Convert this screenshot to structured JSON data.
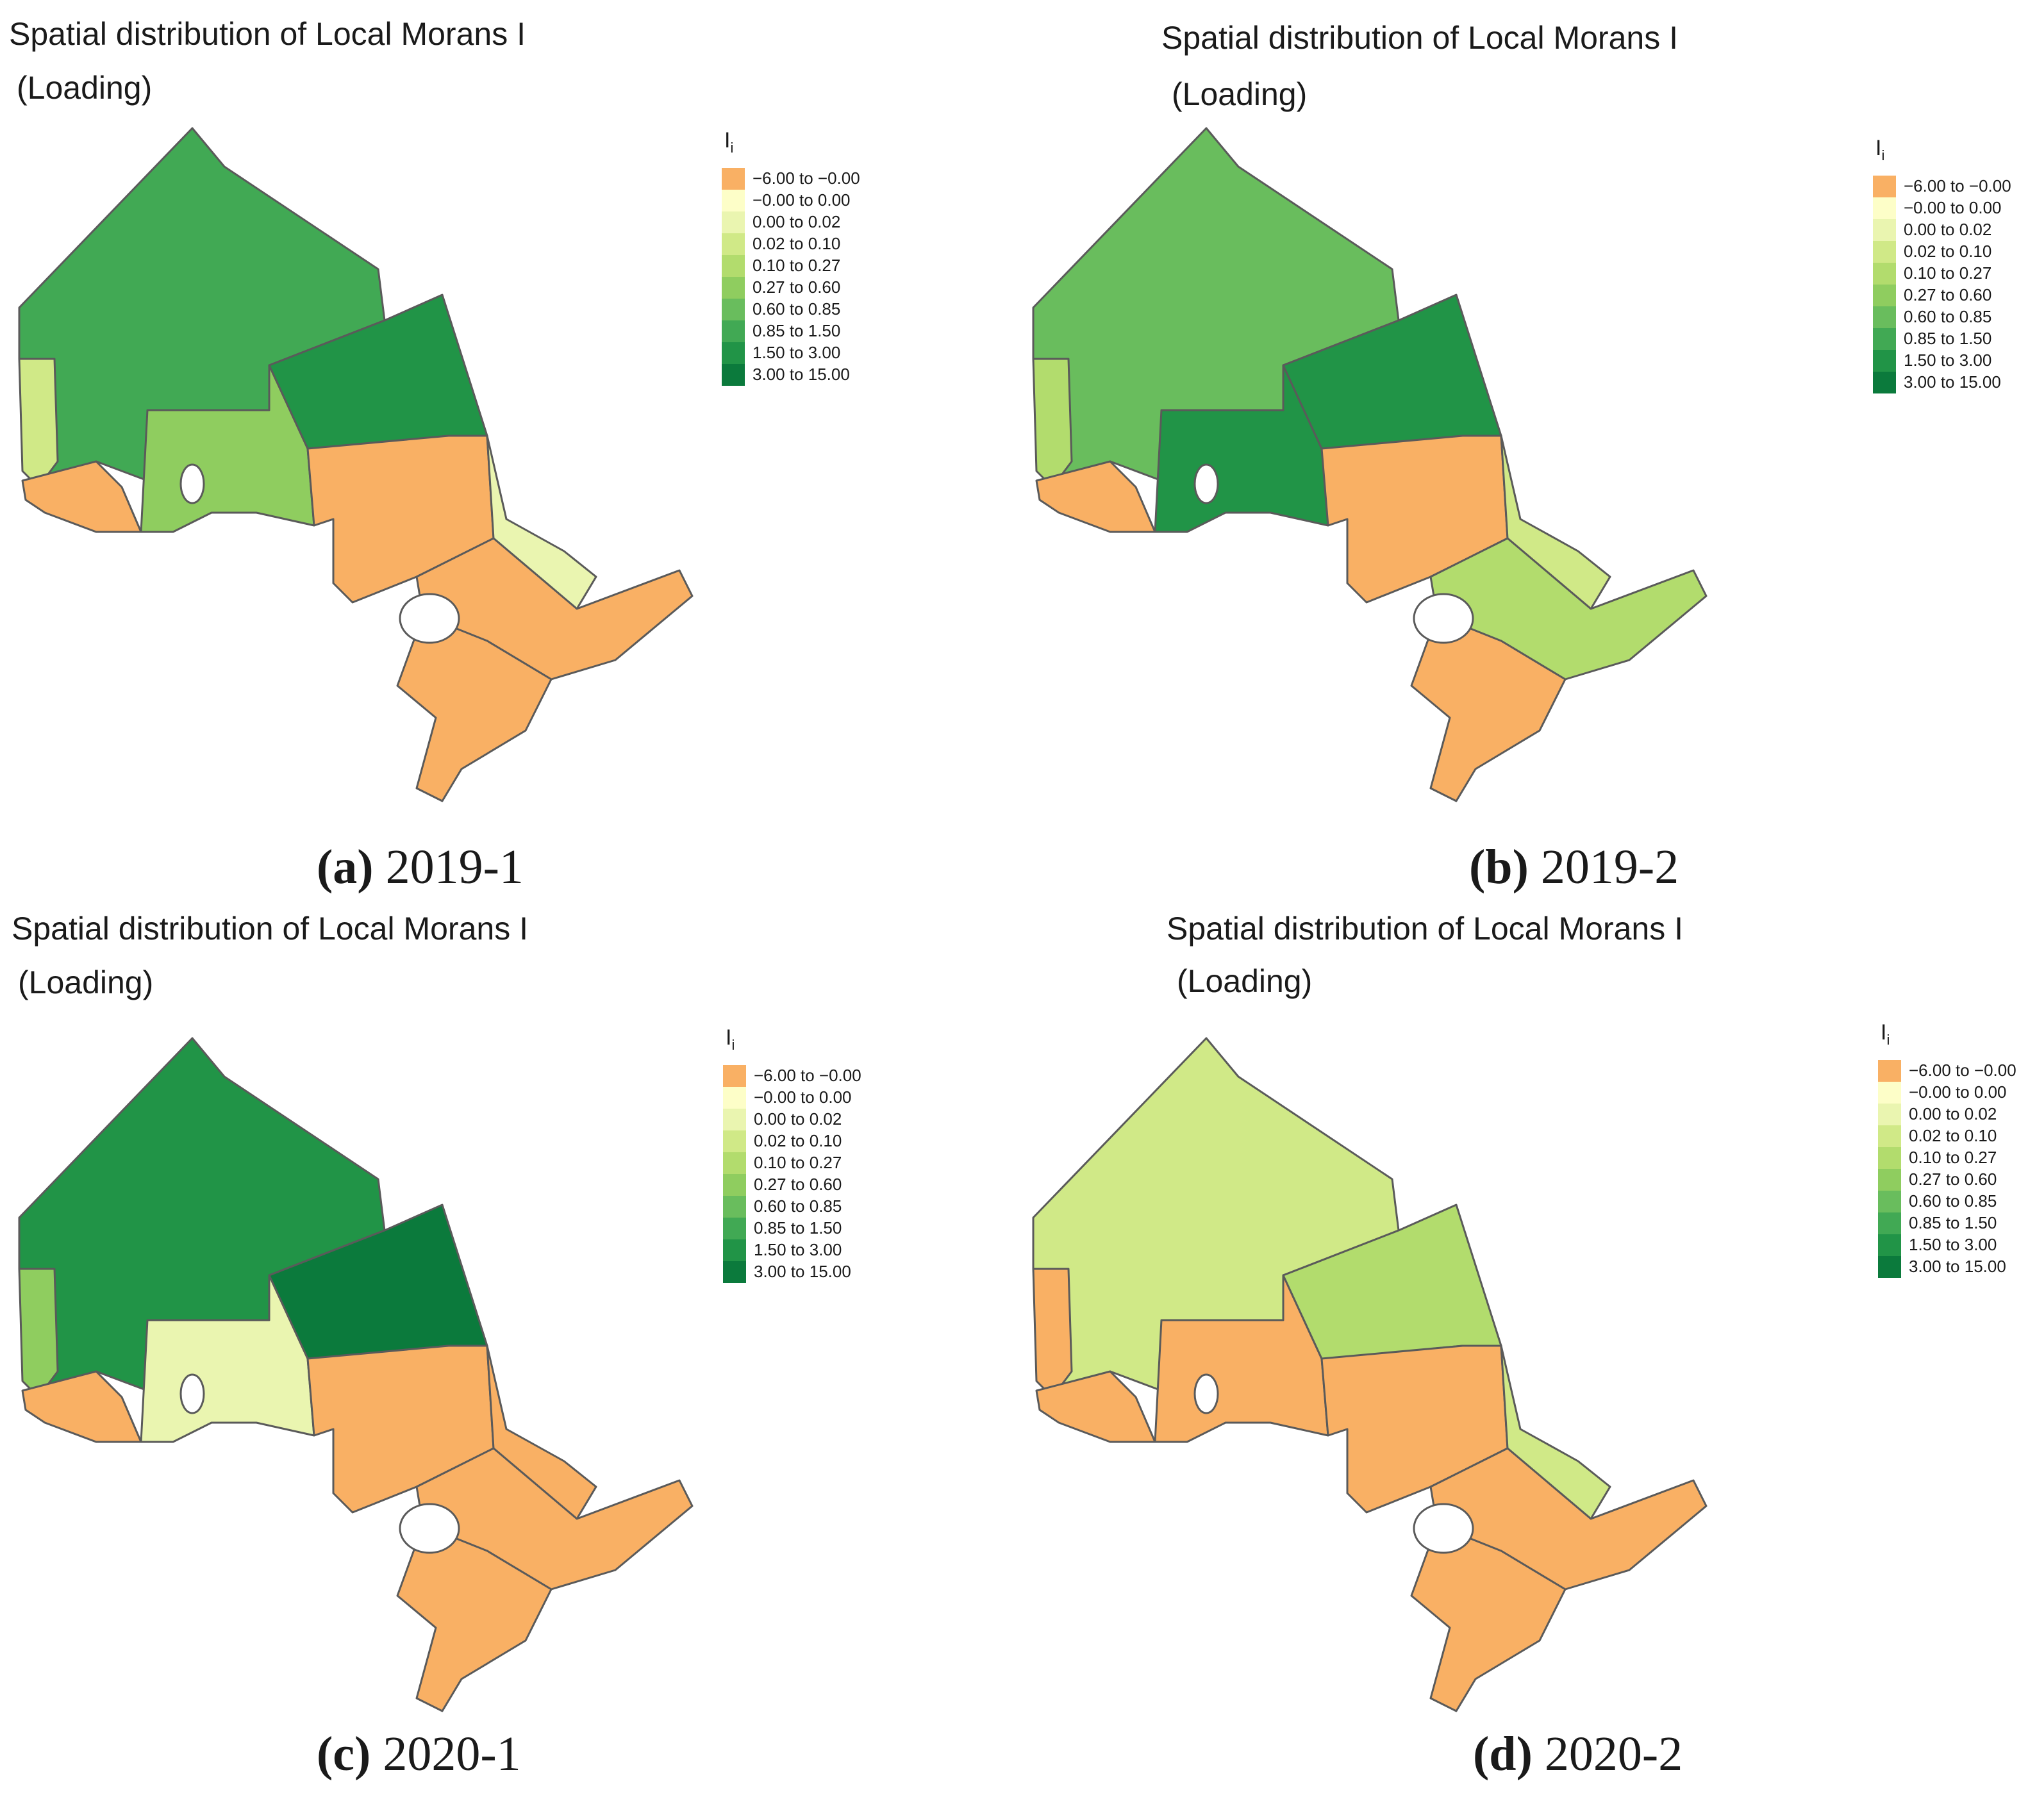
{
  "legend": {
    "title_main": "I",
    "title_sub": "i",
    "classes": [
      {
        "label": "−6.00 to −0.00",
        "color": "#f9b064"
      },
      {
        "label": "−0.00 to 0.00",
        "color": "#fdfec8"
      },
      {
        "label": "0.00 to 0.02",
        "color": "#eaf5b0"
      },
      {
        "label": "0.02 to 0.10",
        "color": "#d0e987"
      },
      {
        "label": "0.10 to 0.27",
        "color": "#b2dc6d"
      },
      {
        "label": "0.27 to 0.60",
        "color": "#8fcd5f"
      },
      {
        "label": "0.60 to 0.85",
        "color": "#69bd5d"
      },
      {
        "label": "0.85 to 1.50",
        "color": "#41a954"
      },
      {
        "label": "1.50 to 3.00",
        "color": "#219447"
      },
      {
        "label": "3.00 to 15.00",
        "color": "#0b7a3c"
      }
    ]
  },
  "panels": [
    {
      "title_line1": "Spatial distribution of Local Morans I",
      "title_line2": "(Loading)",
      "caption_letter": "(a)",
      "caption_period": "2019-1",
      "region_colors": {
        "far_north": "#41a954",
        "west": "#d0e987",
        "center_west": "#8fcd5f",
        "northeast": "#219447",
        "central": "#f9b064",
        "southwest": "#f9b064",
        "east_upper": "#eaf5b0",
        "east": "#f9b064",
        "south": "#f9b064"
      }
    },
    {
      "title_line1": "Spatial distribution of Local Morans I",
      "title_line2": "(Loading)",
      "caption_letter": "(b)",
      "caption_period": "2019-2",
      "region_colors": {
        "far_north": "#69bd5d",
        "west": "#b2dc6d",
        "center_west": "#219447",
        "northeast": "#219447",
        "central": "#f9b064",
        "southwest": "#f9b064",
        "east_upper": "#d0e987",
        "east": "#b2dc6d",
        "south": "#f9b064"
      }
    },
    {
      "title_line1": "Spatial distribution of Local Morans I",
      "title_line2": "(Loading)",
      "caption_letter": "(c)",
      "caption_period": "2020-1",
      "region_colors": {
        "far_north": "#219447",
        "west": "#8fcd5f",
        "center_west": "#eaf5b0",
        "northeast": "#0b7a3c",
        "central": "#f9b064",
        "southwest": "#f9b064",
        "east_upper": "#f9b064",
        "east": "#f9b064",
        "south": "#f9b064"
      }
    },
    {
      "title_line1": "Spatial distribution of Local Morans I",
      "title_line2": "(Loading)",
      "caption_letter": "(d)",
      "caption_period": "2020-2",
      "region_colors": {
        "far_north": "#d0e987",
        "west": "#f9b064",
        "center_west": "#f9b064",
        "northeast": "#b2dc6d",
        "central": "#f9b064",
        "southwest": "#f9b064",
        "east_upper": "#d0e987",
        "east": "#f9b064",
        "south": "#f9b064"
      }
    }
  ]
}
